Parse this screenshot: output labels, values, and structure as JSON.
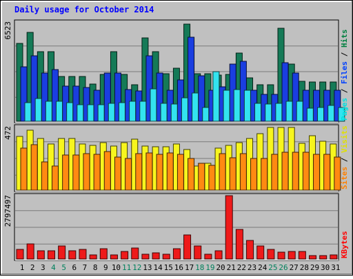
{
  "chart_data": [
    {
      "type": "bar",
      "title": "Daily usage for October 2014",
      "panel": "pages-files-hits",
      "categories": [
        "1",
        "2",
        "3",
        "4",
        "5",
        "6",
        "7",
        "8",
        "9",
        "10",
        "11",
        "12",
        "13",
        "14",
        "15",
        "16",
        "17",
        "18",
        "19",
        "20",
        "21",
        "22",
        "23",
        "24",
        "25",
        "26",
        "27",
        "28",
        "29",
        "30",
        "31"
      ],
      "ymax_label": "6523",
      "ylim": [
        0,
        6523
      ],
      "grid": true,
      "legend": {
        "parts": [
          {
            "text": "Pages",
            "color": "#00e0e0"
          },
          {
            "text": " / ",
            "color": "#000000"
          },
          {
            "text": "Files",
            "color": "#0040ff"
          },
          {
            "text": " / ",
            "color": "#000000"
          },
          {
            "text": "Hits",
            "color": "#008040"
          }
        ]
      },
      "series": [
        {
          "name": "Hits",
          "color": "#157a57",
          "values": [
            5079,
            5820,
            4542,
            4542,
            2941,
            2941,
            2941,
            2450,
            3074,
            4542,
            3074,
            2389,
            5441,
            4543,
            3118,
            3474,
            6323,
            3118,
            3118,
            3012,
            3074,
            4445,
            2835,
            2389,
            2389,
            6063,
            3738,
            2618,
            2582,
            2582,
            2582
          ]
        },
        {
          "name": "Files",
          "color": "#1a3ee0",
          "values": [
            3565,
            4267,
            3152,
            3385,
            2286,
            2290,
            2204,
            2015,
            3132,
            3152,
            2065,
            1970,
            4296,
            3132,
            2015,
            2710,
            5488,
            2960,
            2015,
            2247,
            3738,
            3926,
            2015,
            1754,
            1744,
            3846,
            3132,
            2015,
            2015,
            2015,
            2015
          ]
        },
        {
          "name": "Pages",
          "color": "#33e3ef",
          "values": [
            1208,
            1490,
            1315,
            1325,
            1208,
            1101,
            1098,
            1101,
            1178,
            1220,
            1315,
            1315,
            2121,
            1178,
            1141,
            1520,
            1832,
            884,
            3226,
            2015,
            2084,
            2015,
            1178,
            1113,
            1178,
            1297,
            1315,
            836,
            894,
            1019,
            922
          ]
        }
      ]
    },
    {
      "type": "bar",
      "panel": "sites-visits",
      "categories": [
        "1",
        "2",
        "3",
        "4",
        "5",
        "6",
        "7",
        "8",
        "9",
        "10",
        "11",
        "12",
        "13",
        "14",
        "15",
        "16",
        "17",
        "18",
        "19",
        "20",
        "21",
        "22",
        "23",
        "24",
        "25",
        "26",
        "27",
        "28",
        "29",
        "30",
        "31"
      ],
      "ymax_label": "472",
      "ylim": [
        0,
        472
      ],
      "grid": true,
      "legend": {
        "parts": [
          {
            "text": "Sites",
            "color": "#ff8000"
          },
          {
            "text": " / ",
            "color": "#000000"
          },
          {
            "text": "Visits",
            "color": "#e0e000"
          }
        ]
      },
      "series": [
        {
          "name": "Visits",
          "color": "#f7f51e",
          "values": [
            395,
            440,
            380,
            340,
            380,
            380,
            339,
            330,
            350,
            325,
            350,
            375,
            325,
            320,
            320,
            342,
            300,
            180,
            200,
            310,
            330,
            350,
            380,
            415,
            460,
            460,
            460,
            345,
            400,
            360,
            340
          ]
        },
        {
          "name": "Sites",
          "color": "#ff8a12",
          "values": [
            310,
            335,
            210,
            177,
            261,
            261,
            271,
            262,
            285,
            245,
            233,
            271,
            275,
            262,
            275,
            262,
            232,
            198,
            182,
            271,
            239,
            270,
            232,
            232,
            262,
            280,
            280,
            280,
            262,
            262,
            242
          ]
        }
      ]
    },
    {
      "type": "bar",
      "panel": "kbytes",
      "categories": [
        "1",
        "2",
        "3",
        "4",
        "5",
        "6",
        "7",
        "8",
        "9",
        "10",
        "11",
        "12",
        "13",
        "14",
        "15",
        "16",
        "17",
        "18",
        "19",
        "20",
        "21",
        "22",
        "23",
        "24",
        "25",
        "26",
        "27",
        "28",
        "29",
        "30",
        "31"
      ],
      "ymax_label": "2797497",
      "ylim": [
        0,
        2797497
      ],
      "grid": true,
      "legend": {
        "parts": [
          {
            "text": "KBytes",
            "color": "#ff0000"
          }
        ]
      },
      "series": [
        {
          "name": "KBytes",
          "color": "#ee1a1a",
          "values": [
            430000,
            650000,
            350000,
            350000,
            580000,
            350000,
            410000,
            180000,
            440000,
            180000,
            330000,
            480000,
            210000,
            260000,
            200000,
            440000,
            1060000,
            580000,
            210000,
            370000,
            2780000,
            1280000,
            800000,
            580000,
            410000,
            310000,
            330000,
            330000,
            150000,
            150000,
            170000
          ]
        }
      ]
    }
  ],
  "x_labels": {
    "weekend_color": "#00805c",
    "normal_color": "#000000",
    "weekend_days": [
      "4",
      "5",
      "11",
      "12",
      "18",
      "19",
      "25",
      "26"
    ]
  },
  "colors": {
    "frame_bg": "#c0c0c0",
    "title": "#0000ff"
  }
}
